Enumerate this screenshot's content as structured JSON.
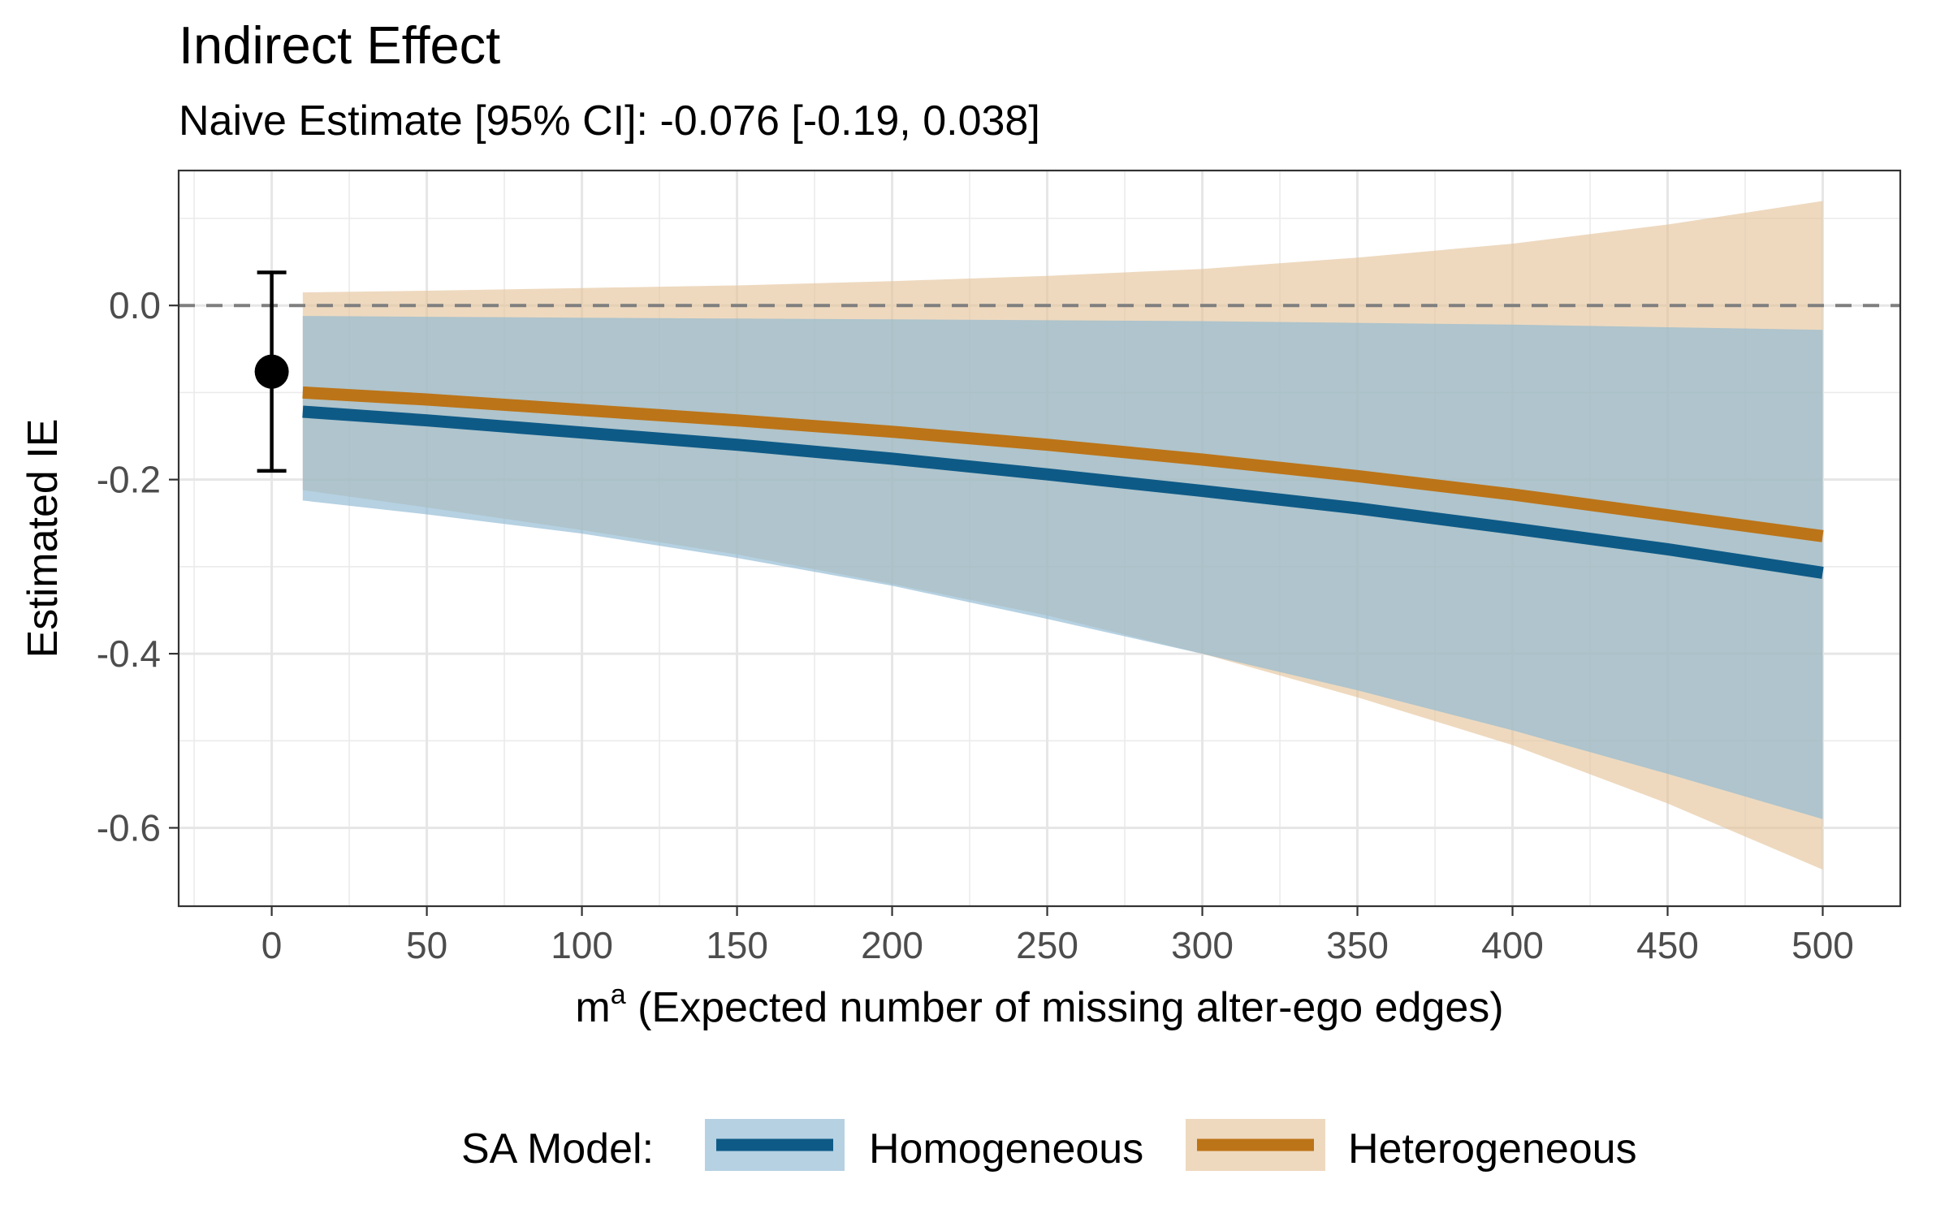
{
  "chart_data": {
    "type": "line",
    "title": "Indirect Effect",
    "subtitle": "Naive Estimate [95% CI]: -0.076 [-0.19, 0.038]",
    "xlabel_main": "m",
    "xlabel_sup": "a",
    "xlabel_rest": " (Expected number of missing alter-ego edges)",
    "ylabel": "Estimated IE",
    "xlim": [
      -30,
      525
    ],
    "ylim": [
      -0.69,
      0.155
    ],
    "x_ticks": [
      0,
      50,
      100,
      150,
      200,
      250,
      300,
      350,
      400,
      450,
      500
    ],
    "x_tick_labels": [
      "0",
      "50",
      "100",
      "150",
      "200",
      "250",
      "300",
      "350",
      "400",
      "450",
      "500"
    ],
    "y_ticks": [
      0.0,
      -0.2,
      -0.4,
      -0.6
    ],
    "y_tick_labels": [
      "0.0",
      "-0.2",
      "-0.4",
      "-0.6"
    ],
    "reference_line_y": 0,
    "naive_estimate": {
      "x": 0,
      "estimate": -0.076,
      "ci_low": -0.19,
      "ci_high": 0.038
    },
    "x": [
      10,
      50,
      100,
      150,
      200,
      250,
      300,
      350,
      400,
      450,
      500
    ],
    "series": [
      {
        "name": "Homogeneous",
        "line_color": "#0e5a87",
        "band_color": "#8db8d2",
        "estimate": [
          -0.122,
          -0.132,
          -0.146,
          -0.16,
          -0.176,
          -0.194,
          -0.213,
          -0.233,
          -0.256,
          -0.28,
          -0.307
        ],
        "lower": [
          -0.224,
          -0.24,
          -0.262,
          -0.29,
          -0.322,
          -0.36,
          -0.4,
          -0.442,
          -0.488,
          -0.538,
          -0.59
        ],
        "upper": [
          -0.012,
          -0.013,
          -0.014,
          -0.015,
          -0.016,
          -0.017,
          -0.018,
          -0.02,
          -0.022,
          -0.025,
          -0.028
        ]
      },
      {
        "name": "Heterogeneous",
        "line_color": "#bc7418",
        "band_color": "#e5c59c",
        "estimate": [
          -0.1,
          -0.108,
          -0.12,
          -0.132,
          -0.145,
          -0.16,
          -0.177,
          -0.196,
          -0.217,
          -0.241,
          -0.265
        ],
        "lower": [
          -0.212,
          -0.232,
          -0.258,
          -0.286,
          -0.32,
          -0.356,
          -0.4,
          -0.45,
          -0.505,
          -0.572,
          -0.648
        ],
        "upper": [
          0.015,
          0.017,
          0.02,
          0.023,
          0.028,
          0.034,
          0.042,
          0.055,
          0.071,
          0.093,
          0.12
        ]
      }
    ],
    "legend": {
      "title": "SA Model:",
      "position": "bottom"
    }
  }
}
